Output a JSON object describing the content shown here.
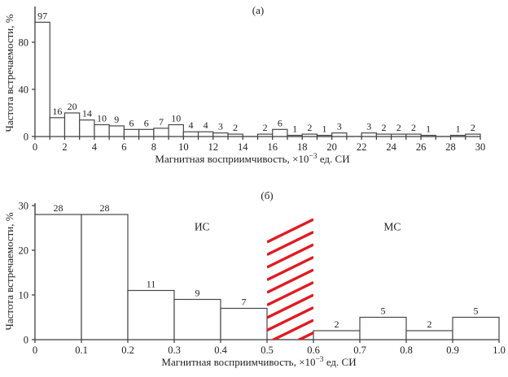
{
  "figure": {
    "background": "#ffffff",
    "text_color": "#222222",
    "axis_color": "#333333",
    "bar_fill": "#ffffff",
    "bar_stroke": "#474747",
    "hatch_color": "#e01b22"
  },
  "chart_data": [
    {
      "id": "a",
      "type": "bar",
      "panel_label": "(а)",
      "ylabel": "Частота встречаемости, %",
      "xlabel": {
        "pre": "Магнитная восприимчивость, ×10",
        "sup": "−3",
        "post": " ед. СИ"
      },
      "xlim": [
        0,
        30
      ],
      "ylim": [
        0,
        110
      ],
      "bin_start": 0,
      "bin_width": 1,
      "values": [
        97,
        16,
        20,
        14,
        10,
        9,
        6,
        6,
        7,
        10,
        4,
        4,
        3,
        2,
        0,
        2,
        6,
        1,
        2,
        1,
        3,
        0,
        3,
        2,
        2,
        2,
        1,
        0,
        1,
        2
      ],
      "bar_labels_visible": true,
      "y_ticks": [
        0,
        40,
        80
      ],
      "x_tick_minor_step": 1,
      "x_tick_label_step": 2,
      "x_tick_decimals": 0,
      "grid": false,
      "legend": null
    },
    {
      "id": "b",
      "type": "bar",
      "panel_label": "(б)",
      "ylabel": "Частота встречаемости, %",
      "xlabel": {
        "pre": "Магнитная восприимчивость, ×10",
        "sup": "−3",
        "post": " ед. СИ"
      },
      "xlim": [
        0,
        1.0
      ],
      "ylim": [
        0,
        30
      ],
      "bin_start": 0,
      "bin_width": 0.1,
      "values": [
        28,
        28,
        11,
        9,
        7,
        null,
        2,
        5,
        2,
        5
      ],
      "bar_labels_visible": true,
      "y_ticks": [
        0,
        10,
        20,
        30
      ],
      "x_tick_minor_step": 0.1,
      "x_tick_label_step": 0.1,
      "x_tick_decimals": 1,
      "grid": false,
      "legend": null,
      "hatched_region": {
        "x_from": 0.5,
        "x_to": 0.6,
        "y_top": 28,
        "style": "diagonal-red-hatch"
      },
      "annotations": [
        {
          "text": "ИС",
          "x": 0.36,
          "y": 24.5
        },
        {
          "text": "МС",
          "x": 0.77,
          "y": 24.5
        }
      ]
    }
  ]
}
